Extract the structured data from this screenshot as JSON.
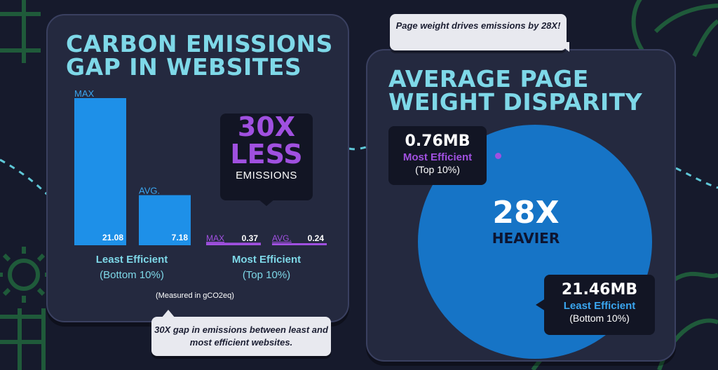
{
  "colors": {
    "background": "#161a2c",
    "panel": "#24293f",
    "title": "#7ed8e8",
    "least_efficient": "#1e90e8",
    "most_efficient": "#a050e0",
    "circle": "#1674c6",
    "decoration": "#1f5a3a"
  },
  "left": {
    "title": "CARBON EMISSIONS GAP IN WEBSITES",
    "callout": {
      "big": "30X LESS",
      "small": "EMISSIONS"
    },
    "least": {
      "name": "Least Efficient",
      "range": "(Bottom 10%)"
    },
    "most": {
      "name": "Most Efficient",
      "range": "(Top 10%)"
    },
    "note": "(Measured in gCO2eq)",
    "speech": "30X gap in emissions between least and most efficient websites."
  },
  "right": {
    "title": "AVERAGE PAGE WEIGHT DISPARITY",
    "speech": "Page weight drives emissions by 28X!",
    "most": {
      "value": "0.76MB",
      "name": "Most Efficient",
      "range": "(Top 10%)"
    },
    "least": {
      "value": "21.46MB",
      "name": "Least Efficient",
      "range": "(Bottom 10%)"
    },
    "center": {
      "big": "28X",
      "small": "HEAVIER"
    }
  },
  "chart_data": [
    {
      "type": "bar",
      "title": "CARBON EMISSIONS GAP IN WEBSITES",
      "unit": "gCO2eq",
      "categories": [
        "Least Efficient (Bottom 10%)",
        "Most Efficient (Top 10%)"
      ],
      "series": [
        {
          "name": "MAX",
          "values": [
            21.08,
            0.37
          ]
        },
        {
          "name": "AVG.",
          "values": [
            7.18,
            0.24
          ]
        }
      ],
      "bar_labels": {
        "max": "MAX",
        "avg": "AVG."
      },
      "value_labels": [
        "21.08",
        "7.18",
        "0.37",
        "0.24"
      ]
    },
    {
      "type": "area",
      "title": "AVERAGE PAGE WEIGHT DISPARITY",
      "unit": "MB",
      "categories": [
        "Most Efficient (Top 10%)",
        "Least Efficient (Bottom 10%)"
      ],
      "values": [
        0.76,
        21.46
      ]
    }
  ]
}
